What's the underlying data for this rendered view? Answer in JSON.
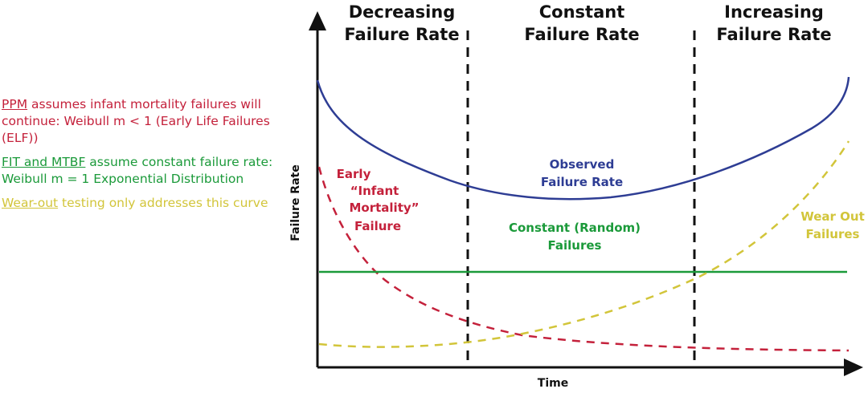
{
  "notes": [
    {
      "underlined": "PPM",
      "rest": " assumes infant mortality failures will continue: Weibull m < 1 (Early Life Failures (ELF))",
      "color": "#c4213b"
    },
    {
      "underlined": "FIT and MTBF",
      "rest": " assume constant failure rate: Weibull m = 1 Exponential Distribution",
      "color": "#1b9a3a"
    },
    {
      "underlined": "Wear-out",
      "rest": " testing only addresses this curve",
      "color": "#d2c53a"
    }
  ],
  "regions": [
    {
      "line1": "Decreasing",
      "line2": "Failure Rate"
    },
    {
      "line1": "Constant",
      "line2": "Failure Rate"
    },
    {
      "line1": "Increasing",
      "line2": "Failure Rate"
    }
  ],
  "axes": {
    "y_label": "Failure Rate",
    "x_label": "Time"
  },
  "curves": {
    "observed": {
      "line1": "Observed",
      "line2": "Failure Rate",
      "color": "#2e3d94"
    },
    "early": {
      "line1": "Early",
      "line2": "“Infant",
      "line3": "Mortality”",
      "line4": "Failure",
      "color": "#c4213b"
    },
    "constant": {
      "line1": "Constant (Random)",
      "line2": "Failures",
      "color": "#1b9a3a"
    },
    "wearout": {
      "line1": "Wear Out",
      "line2": "Failures",
      "color": "#d2c53a"
    }
  }
}
